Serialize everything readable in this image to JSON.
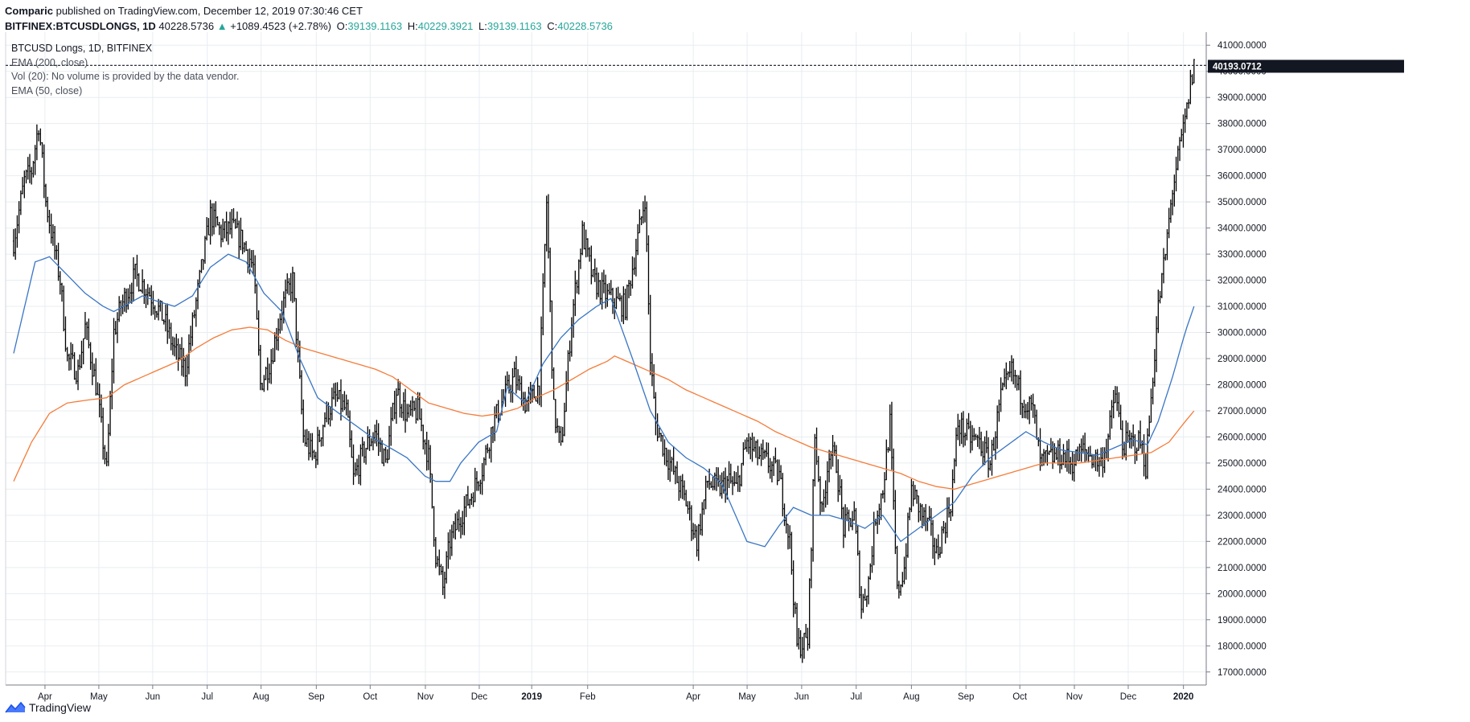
{
  "header": {
    "author": "Comparic",
    "published": "published on TradingView.com, December 12, 2019 07:30:46 CET",
    "symbol": "BITFINEX:BTCUSDLONGS, 1D",
    "last": "40228.5736",
    "arrow": "▲",
    "change": "+1089.4523 (+2.78%)",
    "o_label": "O:",
    "o": "39139.1163",
    "h_label": "H:",
    "h": "40229.3921",
    "l_label": "L:",
    "l": "39139.1163",
    "c_label": "C:",
    "c": "40228.5736"
  },
  "legend": {
    "main": "BTCUSD Longs, 1D, BITFINEX",
    "ema200": "EMA (200, close)",
    "vol": "Vol (20): No volume is provided by the data vendor.",
    "ema50": "EMA (50, close)"
  },
  "footer": {
    "brand": "TradingView",
    "logo_icon": "tradingview-logo-icon"
  },
  "colors": {
    "ema200": "#f57c3a",
    "ema50": "#3a76c4",
    "candle": "#000000",
    "grid": "#e8edf1",
    "up": "#26a69a"
  },
  "chart_data": {
    "type": "candlestick",
    "timeframe": "1D",
    "ylim": [
      16500,
      41500
    ],
    "y_ticks": [
      "41000.0000",
      "40000.0000",
      "39000.0000",
      "38000.0000",
      "37000.0000",
      "36000.0000",
      "35000.0000",
      "34000.0000",
      "33000.0000",
      "32000.0000",
      "31000.0000",
      "30000.0000",
      "29000.0000",
      "28000.0000",
      "27000.0000",
      "26000.0000",
      "25000.0000",
      "24000.0000",
      "23000.0000",
      "22000.0000",
      "21000.0000",
      "20000.0000",
      "19000.0000",
      "18000.0000",
      "17000.0000"
    ],
    "x_ticks": [
      "Apr",
      "May",
      "Jun",
      "Jul",
      "Aug",
      "Sep",
      "Oct",
      "Nov",
      "Dec",
      "2019",
      "Feb",
      "Apr",
      "May",
      "Jun",
      "Jul",
      "Aug",
      "Sep",
      "Oct",
      "Nov",
      "Dec",
      "2020"
    ],
    "price_labels": {
      "last": "40228.5736",
      "marker": "40193.0712"
    },
    "close_anchors": [
      [
        0,
        33500
      ],
      [
        6,
        35800
      ],
      [
        10,
        36200
      ],
      [
        14,
        38000
      ],
      [
        18,
        35000
      ],
      [
        22,
        33500
      ],
      [
        26,
        32000
      ],
      [
        30,
        29000
      ],
      [
        36,
        28500
      ],
      [
        40,
        30200
      ],
      [
        46,
        28000
      ],
      [
        52,
        24700
      ],
      [
        56,
        30000
      ],
      [
        60,
        31000
      ],
      [
        68,
        32200
      ],
      [
        76,
        31500
      ],
      [
        84,
        30500
      ],
      [
        90,
        29300
      ],
      [
        96,
        28600
      ],
      [
        104,
        32000
      ],
      [
        110,
        34500
      ],
      [
        116,
        33800
      ],
      [
        122,
        34000
      ],
      [
        128,
        33500
      ],
      [
        134,
        32500
      ],
      [
        138,
        28000
      ],
      [
        144,
        29000
      ],
      [
        150,
        31000
      ],
      [
        156,
        32000
      ],
      [
        162,
        26000
      ],
      [
        168,
        25200
      ],
      [
        174,
        26800
      ],
      [
        180,
        27500
      ],
      [
        186,
        27000
      ],
      [
        190,
        24400
      ],
      [
        196,
        25500
      ],
      [
        202,
        26200
      ],
      [
        208,
        25000
      ],
      [
        214,
        27800
      ],
      [
        220,
        26800
      ],
      [
        226,
        27000
      ],
      [
        232,
        25200
      ],
      [
        236,
        21500
      ],
      [
        240,
        20200
      ],
      [
        244,
        22000
      ],
      [
        250,
        23000
      ],
      [
        256,
        23800
      ],
      [
        262,
        24800
      ],
      [
        268,
        26500
      ],
      [
        274,
        27500
      ],
      [
        280,
        28300
      ],
      [
        286,
        27300
      ],
      [
        290,
        27500
      ],
      [
        294,
        28000
      ],
      [
        298,
        35000
      ],
      [
        302,
        27000
      ],
      [
        306,
        25500
      ],
      [
        312,
        30500
      ],
      [
        318,
        33800
      ],
      [
        324,
        32000
      ],
      [
        330,
        31500
      ],
      [
        336,
        31200
      ],
      [
        342,
        31000
      ],
      [
        346,
        32500
      ],
      [
        350,
        34000
      ],
      [
        353,
        35200
      ],
      [
        356,
        29000
      ],
      [
        359,
        26500
      ],
      [
        364,
        25500
      ],
      [
        370,
        24500
      ],
      [
        376,
        23500
      ],
      [
        382,
        22000
      ],
      [
        388,
        24300
      ],
      [
        394,
        24000
      ],
      [
        400,
        24300
      ],
      [
        404,
        24000
      ],
      [
        410,
        25800
      ],
      [
        416,
        25300
      ],
      [
        422,
        25000
      ],
      [
        428,
        24500
      ],
      [
        434,
        22000
      ],
      [
        438,
        18000
      ],
      [
        444,
        18200
      ],
      [
        448,
        26000
      ],
      [
        452,
        23000
      ],
      [
        456,
        25500
      ],
      [
        460,
        25000
      ],
      [
        464,
        22500
      ],
      [
        470,
        23000
      ],
      [
        474,
        19500
      ],
      [
        478,
        20500
      ],
      [
        482,
        23000
      ],
      [
        486,
        24000
      ],
      [
        490,
        26500
      ],
      [
        494,
        20000
      ],
      [
        498,
        21000
      ],
      [
        502,
        24000
      ],
      [
        508,
        23000
      ],
      [
        512,
        22500
      ],
      [
        516,
        21500
      ],
      [
        520,
        22500
      ],
      [
        524,
        23500
      ],
      [
        528,
        26500
      ],
      [
        534,
        26000
      ],
      [
        540,
        25800
      ],
      [
        546,
        25000
      ],
      [
        552,
        27500
      ],
      [
        558,
        28500
      ],
      [
        564,
        27500
      ],
      [
        570,
        27000
      ],
      [
        574,
        25000
      ],
      [
        580,
        25200
      ],
      [
        586,
        25300
      ],
      [
        592,
        25000
      ],
      [
        598,
        25500
      ],
      [
        604,
        25200
      ],
      [
        608,
        25000
      ],
      [
        612,
        26000
      ],
      [
        616,
        27700
      ],
      [
        620,
        25700
      ],
      [
        626,
        25800
      ],
      [
        630,
        25800
      ],
      [
        633,
        24900
      ],
      [
        636,
        27500
      ],
      [
        640,
        31000
      ],
      [
        644,
        33000
      ],
      [
        648,
        35500
      ],
      [
        652,
        37000
      ],
      [
        656,
        38500
      ],
      [
        658,
        39500
      ],
      [
        660,
        40228.5736
      ]
    ],
    "ema50_anchors": [
      [
        0,
        29200
      ],
      [
        12,
        32700
      ],
      [
        20,
        32900
      ],
      [
        30,
        32200
      ],
      [
        40,
        31500
      ],
      [
        50,
        31000
      ],
      [
        56,
        30800
      ],
      [
        64,
        31100
      ],
      [
        72,
        31400
      ],
      [
        80,
        31200
      ],
      [
        90,
        31000
      ],
      [
        100,
        31400
      ],
      [
        110,
        32500
      ],
      [
        120,
        33000
      ],
      [
        130,
        32700
      ],
      [
        140,
        31500
      ],
      [
        150,
        30800
      ],
      [
        160,
        29000
      ],
      [
        170,
        27500
      ],
      [
        180,
        27000
      ],
      [
        190,
        26500
      ],
      [
        200,
        26000
      ],
      [
        210,
        25600
      ],
      [
        220,
        25200
      ],
      [
        230,
        24500
      ],
      [
        236,
        24300
      ],
      [
        244,
        24300
      ],
      [
        250,
        25000
      ],
      [
        260,
        25800
      ],
      [
        270,
        26200
      ],
      [
        276,
        27900
      ],
      [
        286,
        27300
      ],
      [
        296,
        28800
      ],
      [
        306,
        29800
      ],
      [
        316,
        30500
      ],
      [
        326,
        31000
      ],
      [
        334,
        31300
      ],
      [
        346,
        29000
      ],
      [
        356,
        27000
      ],
      [
        366,
        25800
      ],
      [
        376,
        25200
      ],
      [
        386,
        24800
      ],
      [
        396,
        24200
      ],
      [
        410,
        22000
      ],
      [
        420,
        21800
      ],
      [
        428,
        22600
      ],
      [
        436,
        23300
      ],
      [
        446,
        23000
      ],
      [
        456,
        23000
      ],
      [
        466,
        22800
      ],
      [
        476,
        22500
      ],
      [
        486,
        23000
      ],
      [
        496,
        22000
      ],
      [
        506,
        22500
      ],
      [
        516,
        23000
      ],
      [
        526,
        23500
      ],
      [
        536,
        24500
      ],
      [
        546,
        25200
      ],
      [
        556,
        25700
      ],
      [
        566,
        26200
      ],
      [
        576,
        25800
      ],
      [
        586,
        25500
      ],
      [
        596,
        25400
      ],
      [
        606,
        25300
      ],
      [
        616,
        25600
      ],
      [
        626,
        25900
      ],
      [
        634,
        25700
      ],
      [
        640,
        26600
      ],
      [
        648,
        28300
      ],
      [
        655,
        30000
      ],
      [
        660,
        31000
      ]
    ],
    "ema200_anchors": [
      [
        0,
        24300
      ],
      [
        10,
        25800
      ],
      [
        20,
        26900
      ],
      [
        30,
        27300
      ],
      [
        40,
        27400
      ],
      [
        52,
        27500
      ],
      [
        62,
        28000
      ],
      [
        72,
        28300
      ],
      [
        82,
        28600
      ],
      [
        92,
        28900
      ],
      [
        102,
        29400
      ],
      [
        112,
        29800
      ],
      [
        122,
        30100
      ],
      [
        132,
        30200
      ],
      [
        142,
        30100
      ],
      [
        152,
        29700
      ],
      [
        162,
        29400
      ],
      [
        172,
        29200
      ],
      [
        182,
        29000
      ],
      [
        192,
        28800
      ],
      [
        202,
        28600
      ],
      [
        212,
        28300
      ],
      [
        222,
        27800
      ],
      [
        232,
        27300
      ],
      [
        242,
        27100
      ],
      [
        252,
        26900
      ],
      [
        262,
        26800
      ],
      [
        272,
        26900
      ],
      [
        282,
        27100
      ],
      [
        292,
        27500
      ],
      [
        302,
        27800
      ],
      [
        312,
        28200
      ],
      [
        322,
        28600
      ],
      [
        332,
        28900
      ],
      [
        336,
        29100
      ],
      [
        346,
        28800
      ],
      [
        356,
        28500
      ],
      [
        366,
        28200
      ],
      [
        376,
        27800
      ],
      [
        386,
        27500
      ],
      [
        396,
        27200
      ],
      [
        406,
        26900
      ],
      [
        416,
        26600
      ],
      [
        426,
        26200
      ],
      [
        436,
        25900
      ],
      [
        446,
        25600
      ],
      [
        456,
        25400
      ],
      [
        466,
        25200
      ],
      [
        476,
        25000
      ],
      [
        486,
        24800
      ],
      [
        496,
        24600
      ],
      [
        506,
        24300
      ],
      [
        516,
        24100
      ],
      [
        526,
        24000
      ],
      [
        536,
        24200
      ],
      [
        546,
        24400
      ],
      [
        556,
        24600
      ],
      [
        566,
        24800
      ],
      [
        576,
        25000
      ],
      [
        586,
        25000
      ],
      [
        596,
        25000
      ],
      [
        606,
        25100
      ],
      [
        616,
        25200
      ],
      [
        626,
        25300
      ],
      [
        636,
        25400
      ],
      [
        646,
        25800
      ],
      [
        654,
        26500
      ],
      [
        660,
        27000
      ]
    ]
  }
}
